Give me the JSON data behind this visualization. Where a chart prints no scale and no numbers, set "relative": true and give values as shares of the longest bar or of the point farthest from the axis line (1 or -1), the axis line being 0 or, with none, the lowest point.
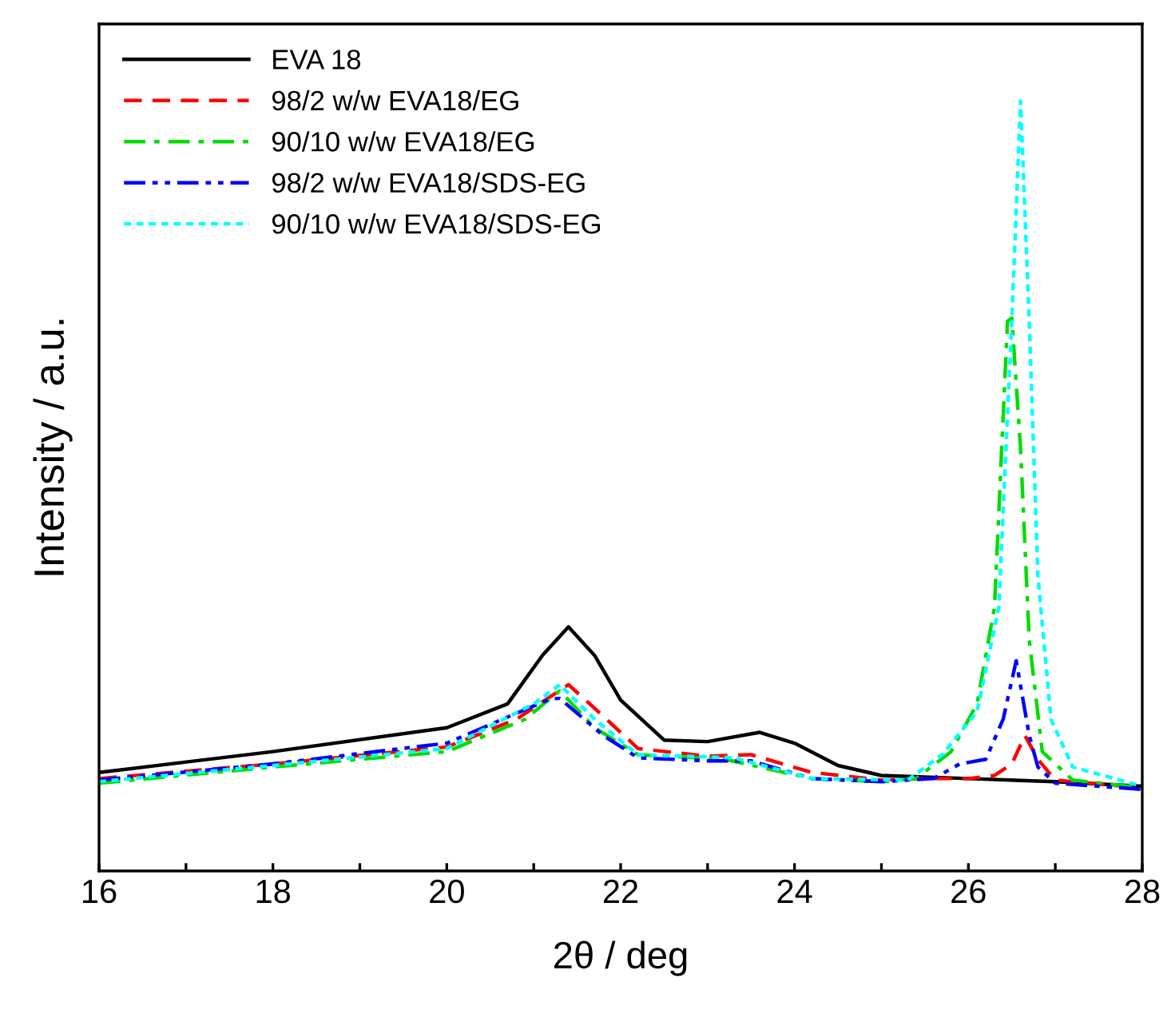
{
  "chart_data": {
    "type": "line",
    "relative": true,
    "xlabel": "2θ / deg",
    "ylabel": "Intensity / a.u.",
    "xlim": [
      16,
      28
    ],
    "xticks": [
      16,
      {
        "value": 17,
        "label": null
      },
      18,
      {
        "value": 19,
        "label": null
      },
      20,
      {
        "value": 21,
        "label": null
      },
      22,
      {
        "value": 23,
        "label": null
      },
      24,
      {
        "value": 25,
        "label": null
      },
      26,
      {
        "value": 27,
        "label": null
      },
      28
    ],
    "tick_labels": "x",
    "grid": false,
    "legend": "top left",
    "marker": "none",
    "series": [
      {
        "name": "EVA 18",
        "color": "#000000",
        "line_style": "solid",
        "x": [
          16,
          18,
          20,
          20.7,
          21.1,
          21.4,
          21.7,
          22,
          22.5,
          23,
          23.6,
          24,
          24.5,
          25,
          26,
          27,
          28
        ],
        "values": [
          0.128,
          0.155,
          0.186,
          0.217,
          0.28,
          0.317,
          0.28,
          0.222,
          0.17,
          0.168,
          0.18,
          0.166,
          0.137,
          0.124,
          0.12,
          0.116,
          0.11
        ]
      },
      {
        "name": "98/2 w/w EVA18/EG",
        "color": "#ff0000",
        "line_style": "dashed",
        "x": [
          16,
          18,
          20,
          20.8,
          21.4,
          21.8,
          22.2,
          23,
          23.5,
          24.2,
          25,
          25.5,
          26,
          26.3,
          26.5,
          26.65,
          26.8,
          27,
          28
        ],
        "values": [
          0.12,
          0.139,
          0.161,
          0.197,
          0.242,
          0.201,
          0.159,
          0.149,
          0.151,
          0.128,
          0.118,
          0.12,
          0.12,
          0.124,
          0.139,
          0.176,
          0.145,
          0.118,
          0.108
        ]
      },
      {
        "name": "90/10 w/w EVA18/EG",
        "color": "#00dd00",
        "line_style": "dashdot",
        "x": [
          16,
          18,
          20,
          20.9,
          21.3,
          21.7,
          22.2,
          23.2,
          24.2,
          25,
          25.4,
          25.8,
          26.1,
          26.3,
          26.45,
          26.5,
          26.6,
          26.7,
          26.85,
          27.2,
          28
        ],
        "values": [
          0.114,
          0.135,
          0.155,
          0.197,
          0.234,
          0.186,
          0.151,
          0.145,
          0.12,
          0.116,
          0.12,
          0.155,
          0.217,
          0.342,
          0.714,
          0.718,
          0.549,
          0.3,
          0.155,
          0.118,
          0.108
        ]
      },
      {
        "name": "98/2 w/w EVA18/SDS-EG",
        "color": "#0000ff",
        "line_style": "dashdotdot",
        "x": [
          16,
          18,
          20,
          21.2,
          21.3,
          21.8,
          22.2,
          23,
          23.5,
          24.2,
          25,
          25.6,
          25.9,
          26.2,
          26.4,
          26.55,
          26.7,
          26.8,
          27,
          28
        ],
        "values": [
          0.118,
          0.139,
          0.166,
          0.224,
          0.224,
          0.176,
          0.147,
          0.143,
          0.143,
          0.12,
          0.116,
          0.12,
          0.139,
          0.145,
          0.197,
          0.273,
          0.176,
          0.135,
          0.114,
          0.106
        ]
      },
      {
        "name": "90/10 w/w EVA18/SDS-EG",
        "color": "#00ffff",
        "line_style": "dotted",
        "x": [
          16,
          18,
          20,
          21,
          21.3,
          21.7,
          22.2,
          23.3,
          24.2,
          25.3,
          25.7,
          26.1,
          26.35,
          26.5,
          26.6,
          26.7,
          26.8,
          26.95,
          27.2,
          28
        ],
        "values": [
          0.116,
          0.137,
          0.159,
          0.217,
          0.242,
          0.197,
          0.151,
          0.147,
          0.12,
          0.118,
          0.151,
          0.207,
          0.342,
          0.714,
          1.0,
          0.714,
          0.383,
          0.197,
          0.135,
          0.11
        ]
      }
    ]
  }
}
